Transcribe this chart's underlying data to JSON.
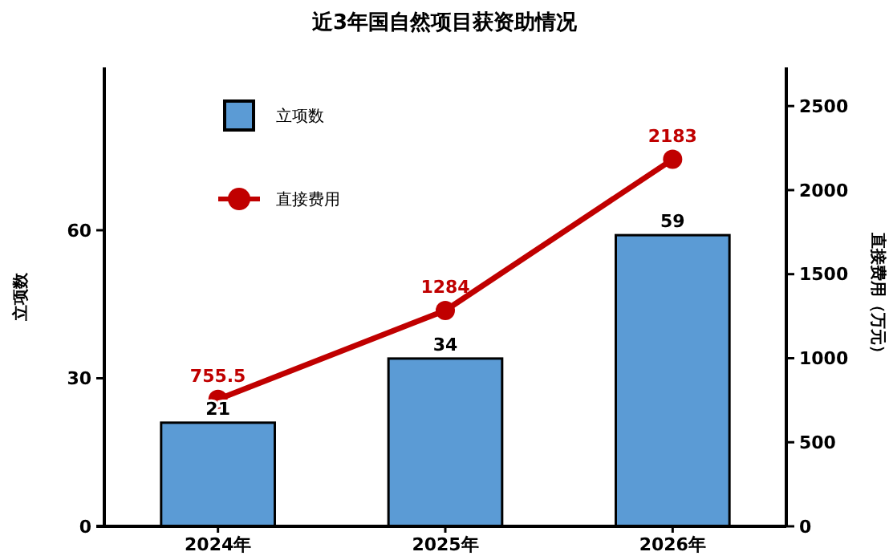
{
  "chart_data": {
    "type": "bar",
    "title": "近3年国自然项目获资助情况",
    "categories": [
      "2024年",
      "2025年",
      "2026年"
    ],
    "ylabel": "立项数",
    "y2label": "直接费用（万元）",
    "ylim": [
      0,
      93
    ],
    "yticks": [
      0,
      30,
      60
    ],
    "y2lim": [
      0,
      2730
    ],
    "y2ticks": [
      0,
      500,
      1000,
      1500,
      2000,
      2500
    ],
    "data_labels": true,
    "legend": "top left",
    "series": [
      {
        "name": "立项数",
        "color": "#5b9bd5",
        "values": [
          21,
          34,
          59
        ]
      },
      {
        "name": "直接费用",
        "type": "line",
        "axis": "y2",
        "color": "#c00000",
        "marker": "circle",
        "line_style": "solid",
        "values": [
          755.5,
          1284,
          2183
        ]
      }
    ]
  }
}
